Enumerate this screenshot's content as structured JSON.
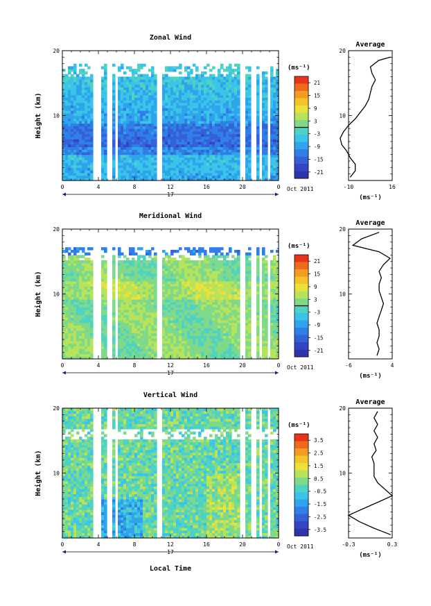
{
  "xlabel": "Local Time",
  "date_day": "17",
  "date_month": "Oct 2011",
  "avg_title": "Average",
  "unit": "(ms⁻¹)",
  "chart_data": [
    {
      "type": "heatmap",
      "title": "Zonal Wind",
      "ylabel": "Height (km)",
      "xlim": [
        0,
        24
      ],
      "ylim": [
        0,
        20
      ],
      "x_ticks": [
        "0",
        "4",
        "8",
        "12",
        "16",
        "20",
        "0"
      ],
      "y_ticks": [
        "10",
        "20"
      ],
      "colorbar_ticks": [
        "21",
        "15",
        "9",
        "3",
        "-3",
        "-9",
        "-15",
        "-21"
      ],
      "colorbar_range": [
        -24,
        24
      ],
      "avg_profile": {
        "xlim": [
          -10,
          16
        ],
        "x_ticks": [
          "-10",
          "16"
        ],
        "y_ticks": [
          "10",
          "20"
        ],
        "heights": [
          0.5,
          1.5,
          2.5,
          3.5,
          4.5,
          5.5,
          6.5,
          7.5,
          8.5,
          9.5,
          10.5,
          11.5,
          12.5,
          13.5,
          14.5,
          15.5,
          16.5,
          17.5,
          18.5,
          19.0
        ],
        "values": [
          -9,
          -6,
          -6,
          -9,
          -11,
          -14,
          -15,
          -13,
          -10,
          -6,
          -3,
          0,
          2,
          3,
          4,
          6,
          4,
          3,
          8,
          15
        ]
      }
    },
    {
      "type": "heatmap",
      "title": "Meridional Wind",
      "ylabel": "Height (km)",
      "xlim": [
        0,
        24
      ],
      "ylim": [
        0,
        20
      ],
      "x_ticks": [
        "0",
        "4",
        "8",
        "12",
        "16",
        "20",
        "0"
      ],
      "y_ticks": [
        "10",
        "20"
      ],
      "colorbar_ticks": [
        "21",
        "15",
        "9",
        "3",
        "-3",
        "-9",
        "-15",
        "-21"
      ],
      "colorbar_range": [
        -24,
        24
      ],
      "avg_profile": {
        "xlim": [
          -6,
          4
        ],
        "x_ticks": [
          "-6",
          "4"
        ],
        "y_ticks": [
          "10",
          "20"
        ],
        "heights": [
          0.5,
          1.5,
          2.5,
          3.5,
          4.5,
          5.5,
          6.5,
          7.5,
          8.5,
          9.5,
          10.5,
          11.5,
          12.5,
          13.5,
          14.5,
          15.5,
          16.5,
          17.5,
          18.5,
          19.5
        ],
        "values": [
          0.5,
          1.0,
          0.5,
          1.0,
          1.0,
          0.5,
          1.0,
          1.5,
          2.0,
          1.5,
          1.0,
          1.0,
          1.5,
          1.0,
          2.0,
          3.5,
          1.0,
          -5.0,
          -3.0,
          1.0
        ]
      }
    },
    {
      "type": "heatmap",
      "title": "Vertical Wind",
      "ylabel": "Height (km)",
      "xlim": [
        0,
        24
      ],
      "ylim": [
        0,
        20
      ],
      "x_ticks": [
        "0",
        "4",
        "8",
        "12",
        "16",
        "20",
        "0"
      ],
      "y_ticks": [
        "10",
        "20"
      ],
      "colorbar_ticks": [
        "3.5",
        "2.5",
        "1.5",
        "0.5",
        "-0.5",
        "-1.5",
        "-2.5",
        "-3.5"
      ],
      "colorbar_range": [
        -4,
        4
      ],
      "avg_profile": {
        "xlim": [
          -0.3,
          0.3
        ],
        "x_ticks": [
          "-0.3",
          "0.3"
        ],
        "y_ticks": [
          "10",
          "20"
        ],
        "heights": [
          0.5,
          1.5,
          2.5,
          3.5,
          4.5,
          5.5,
          6.5,
          7.5,
          8.5,
          9.5,
          10.5,
          11.5,
          12.5,
          13.5,
          14.5,
          15.5,
          16.5,
          17.5,
          18.5,
          19.5
        ],
        "values": [
          0.28,
          0.05,
          -0.15,
          -0.3,
          -0.1,
          0.1,
          0.3,
          0.2,
          0.1,
          0.05,
          0.05,
          0.05,
          0.02,
          0.08,
          0.05,
          0.1,
          0.05,
          0.1,
          0.05,
          0.1
        ]
      }
    }
  ]
}
